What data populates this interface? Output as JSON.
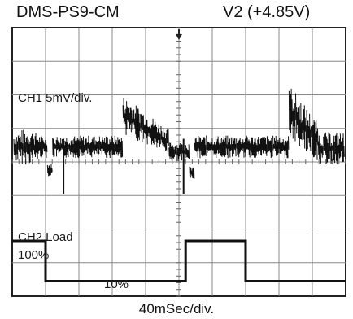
{
  "header": {
    "model": "DMS-PS9-CM",
    "channel": "V2 (+4.85V)"
  },
  "chart_data": {
    "type": "line",
    "x_scale_label": "40mSec/div.",
    "x_divisions": 10,
    "y_divisions": 8,
    "series": [
      {
        "name": "CH1",
        "scale_label": "CH1  5mV/div.",
        "events": [
          {
            "div": 0.0,
            "kind": "start"
          },
          {
            "div": 1.1,
            "kind": "step_down"
          },
          {
            "div": 3.3,
            "kind": "load_step_up"
          },
          {
            "div": 4.7,
            "kind": "step_down"
          },
          {
            "div": 5.3,
            "kind": "load_step_down"
          },
          {
            "div": 8.3,
            "kind": "load_step_up"
          }
        ],
        "baseline_div": 4.45
      },
      {
        "name": "CH2 Load",
        "scale_label": "CH2  Load",
        "level_labels": {
          "high": "100%",
          "low": "10%"
        },
        "high_div": 1.65,
        "low_div": 0.45,
        "transitions_div": [
          1.0,
          5.2,
          7.0
        ]
      }
    ]
  }
}
